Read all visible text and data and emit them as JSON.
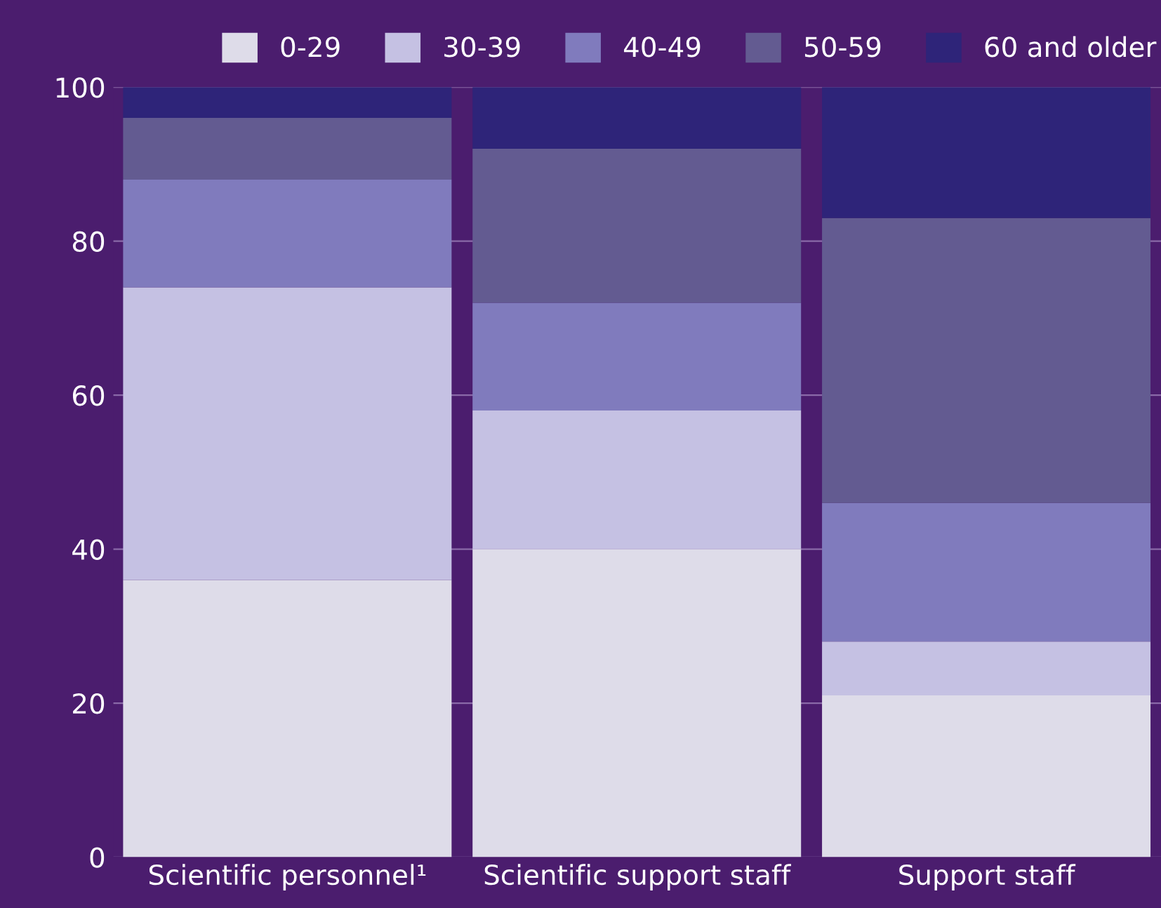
{
  "chart_data": {
    "type": "bar",
    "stacked": true,
    "categories": [
      "Scientific personnel¹",
      "Scientific support staff",
      "Support staff"
    ],
    "series": [
      {
        "name": "0-29",
        "color": "#dedce9",
        "values": [
          36,
          40,
          21
        ]
      },
      {
        "name": "30-39",
        "color": "#c5c1e3",
        "values": [
          38,
          18,
          7
        ]
      },
      {
        "name": "40-49",
        "color": "#807bbd",
        "values": [
          14,
          14,
          18
        ]
      },
      {
        "name": "50-59",
        "color": "#635b91",
        "values": [
          8,
          20,
          37
        ]
      },
      {
        "name": "60 and older",
        "color": "#2e2479",
        "values": [
          4,
          8,
          17
        ]
      }
    ],
    "ylim": [
      0,
      100
    ],
    "yticks": [
      0,
      20,
      40,
      60,
      80,
      100
    ],
    "grid": "y",
    "legend": "top"
  }
}
